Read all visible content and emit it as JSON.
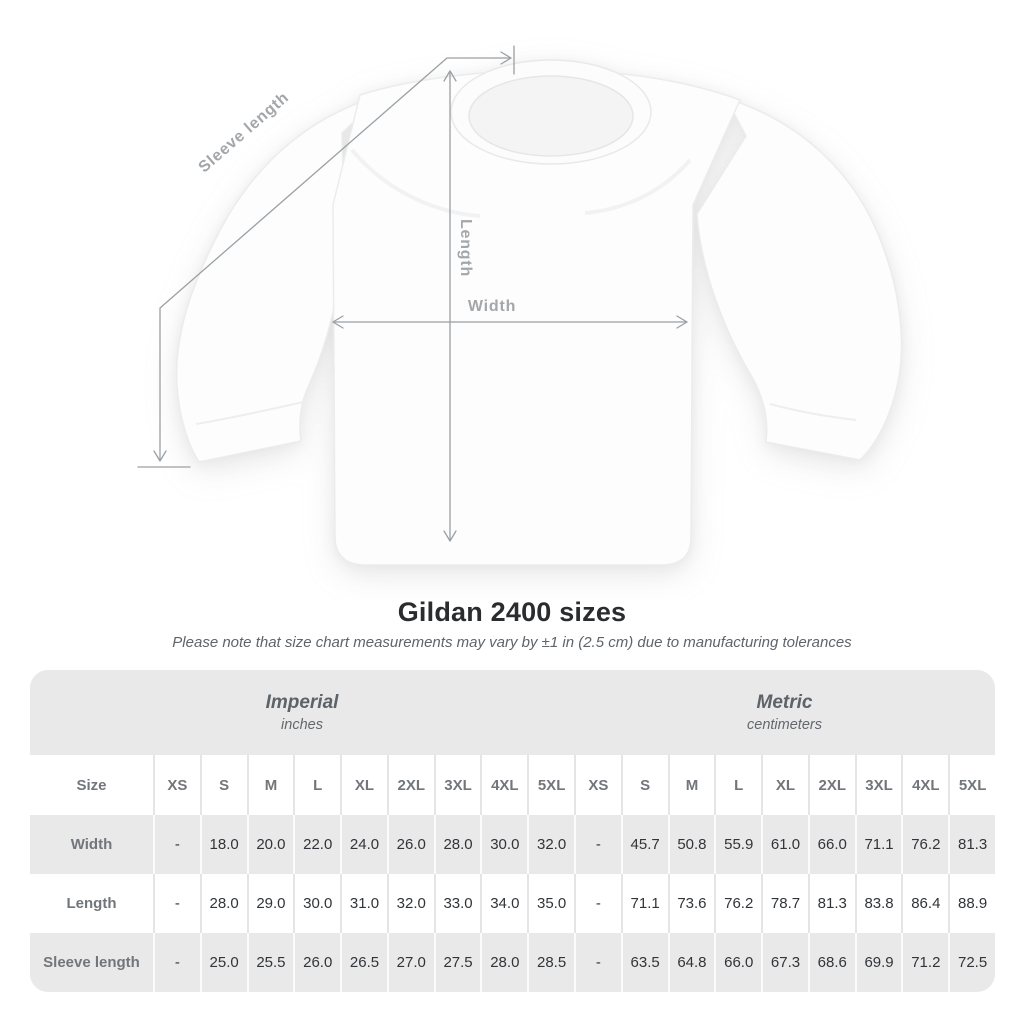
{
  "page": {
    "title": "Gildan 2400 sizes",
    "subtitle": "Please note that size chart measurements may vary by ±1 in (2.5 cm) due to manufacturing tolerances"
  },
  "diagram": {
    "labels": {
      "sleeve_length": "Sleeve length",
      "length": "Length",
      "width": "Width"
    }
  },
  "size_table": {
    "corner_label": "Size",
    "groups": [
      {
        "name": "Imperial",
        "unit": "inches"
      },
      {
        "name": "Metric",
        "unit": "centimeters"
      }
    ],
    "sizes": [
      "XS",
      "S",
      "M",
      "L",
      "XL",
      "2XL",
      "3XL",
      "4XL",
      "5XL"
    ],
    "rows": [
      {
        "label": "Width",
        "imperial": [
          "-",
          "18.0",
          "20.0",
          "22.0",
          "24.0",
          "26.0",
          "28.0",
          "30.0",
          "32.0"
        ],
        "metric": [
          "-",
          "45.7",
          "50.8",
          "55.9",
          "61.0",
          "66.0",
          "71.1",
          "76.2",
          "81.3"
        ]
      },
      {
        "label": "Length",
        "imperial": [
          "-",
          "28.0",
          "29.0",
          "30.0",
          "31.0",
          "32.0",
          "33.0",
          "34.0",
          "35.0"
        ],
        "metric": [
          "-",
          "71.1",
          "73.6",
          "76.2",
          "78.7",
          "81.3",
          "83.8",
          "86.4",
          "88.9"
        ]
      },
      {
        "label": "Sleeve length",
        "imperial": [
          "-",
          "25.0",
          "25.5",
          "26.0",
          "26.5",
          "27.0",
          "27.5",
          "28.0",
          "28.5"
        ],
        "metric": [
          "-",
          "63.5",
          "64.8",
          "66.0",
          "67.3",
          "68.6",
          "69.9",
          "71.2",
          "72.5"
        ]
      }
    ]
  },
  "colors": {
    "table_band": "#e9e9e9",
    "measure_line": "#9aa0a4",
    "diagram_label": "#a3a7aa",
    "header_text": "#72767b",
    "value_text": "#313438",
    "shirt_fill": "#fdfdfd"
  }
}
